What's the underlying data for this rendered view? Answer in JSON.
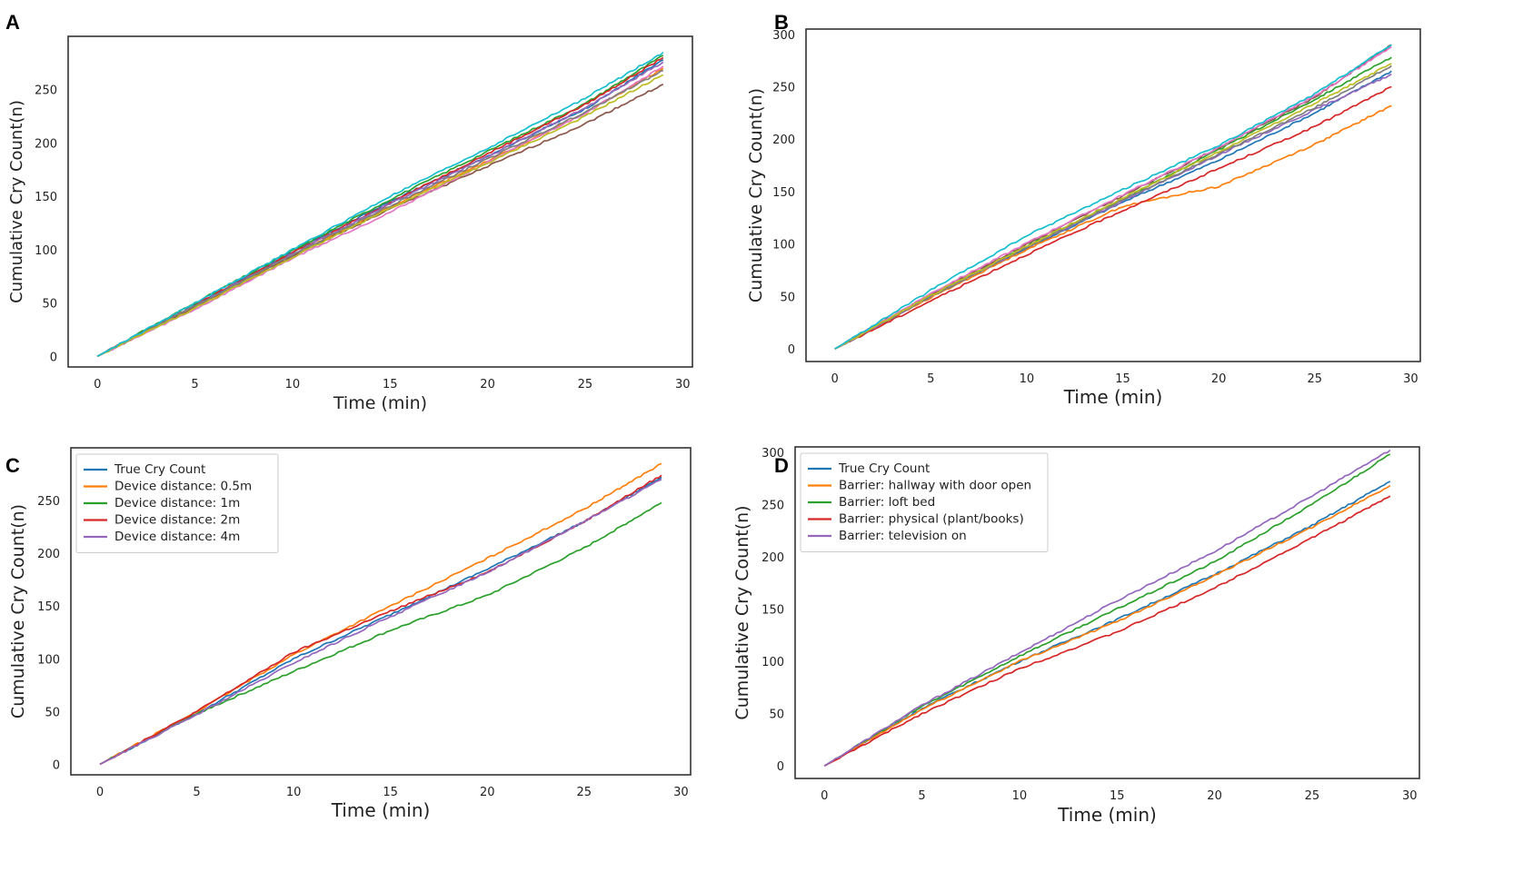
{
  "figure": {
    "panels": [
      "A",
      "B",
      "C",
      "D"
    ]
  },
  "chart_data": [
    {
      "panel": "A",
      "type": "line",
      "xlabel": "Time (min)",
      "ylabel": "Cumulative Cry Count(n)",
      "xlim": [
        -1.5,
        30.5
      ],
      "ylim": [
        -10,
        300
      ],
      "xticks": [
        0,
        5,
        10,
        15,
        20,
        25,
        30
      ],
      "yticks": [
        0,
        50,
        100,
        150,
        200,
        250
      ],
      "legend": null,
      "series": [
        {
          "name": "",
          "color": "#1f77b4",
          "values": [
            [
              0,
              0
            ],
            [
              5,
              48
            ],
            [
              10,
              98
            ],
            [
              15,
              145
            ],
            [
              20,
              188
            ],
            [
              25,
              232
            ],
            [
              29,
              278
            ]
          ]
        },
        {
          "name": "",
          "color": "#ff7f0e",
          "values": [
            [
              0,
              0
            ],
            [
              5,
              46
            ],
            [
              10,
              95
            ],
            [
              15,
              140
            ],
            [
              20,
              183
            ],
            [
              25,
              228
            ],
            [
              29,
              270
            ]
          ]
        },
        {
          "name": "",
          "color": "#2ca02c",
          "values": [
            [
              0,
              0
            ],
            [
              5,
              50
            ],
            [
              10,
              99
            ],
            [
              15,
              147
            ],
            [
              20,
              192
            ],
            [
              25,
              237
            ],
            [
              29,
              282
            ]
          ]
        },
        {
          "name": "",
          "color": "#d62728",
          "values": [
            [
              0,
              0
            ],
            [
              5,
              48
            ],
            [
              10,
              97
            ],
            [
              15,
              144
            ],
            [
              20,
              190
            ],
            [
              25,
              236
            ],
            [
              29,
              280
            ]
          ]
        },
        {
          "name": "",
          "color": "#9467bd",
          "values": [
            [
              0,
              0
            ],
            [
              5,
              47
            ],
            [
              10,
              96
            ],
            [
              15,
              143
            ],
            [
              20,
              187
            ],
            [
              25,
              233
            ],
            [
              29,
              276
            ]
          ]
        },
        {
          "name": "",
          "color": "#8c564b",
          "values": [
            [
              0,
              0
            ],
            [
              5,
              46
            ],
            [
              10,
              94
            ],
            [
              15,
              138
            ],
            [
              20,
              178
            ],
            [
              25,
              218
            ],
            [
              29,
              255
            ]
          ]
        },
        {
          "name": "",
          "color": "#e377c2",
          "values": [
            [
              0,
              0
            ],
            [
              5,
              44
            ],
            [
              10,
              92
            ],
            [
              15,
              135
            ],
            [
              20,
              182
            ],
            [
              25,
              228
            ],
            [
              29,
              272
            ]
          ]
        },
        {
          "name": "",
          "color": "#7f7f7f",
          "values": [
            [
              0,
              0
            ],
            [
              5,
              47
            ],
            [
              10,
              95
            ],
            [
              15,
              141
            ],
            [
              20,
              185
            ],
            [
              25,
              229
            ],
            [
              29,
              268
            ]
          ]
        },
        {
          "name": "",
          "color": "#bcbd22",
          "values": [
            [
              0,
              0
            ],
            [
              5,
              45
            ],
            [
              10,
              93
            ],
            [
              15,
              139
            ],
            [
              20,
              181
            ],
            [
              25,
              225
            ],
            [
              29,
              264
            ]
          ]
        },
        {
          "name": "",
          "color": "#17becf",
          "values": [
            [
              0,
              0
            ],
            [
              5,
              50
            ],
            [
              10,
              100
            ],
            [
              15,
              150
            ],
            [
              20,
              195
            ],
            [
              25,
              242
            ],
            [
              29,
              285
            ]
          ]
        }
      ]
    },
    {
      "panel": "B",
      "type": "line",
      "xlabel": "Time (min)",
      "ylabel": "Cumulative Cry Count(n)",
      "xlim": [
        -1.5,
        30.5
      ],
      "ylim": [
        -12,
        305
      ],
      "xticks": [
        0,
        5,
        10,
        15,
        20,
        25,
        30
      ],
      "yticks": [
        0,
        50,
        100,
        150,
        200,
        250,
        300
      ],
      "legend": null,
      "series": [
        {
          "name": "",
          "color": "#1f77b4",
          "values": [
            [
              0,
              0
            ],
            [
              5,
              50
            ],
            [
              10,
              96
            ],
            [
              15,
              140
            ],
            [
              20,
              180
            ],
            [
              25,
              225
            ],
            [
              29,
              265
            ]
          ]
        },
        {
          "name": "",
          "color": "#ff7f0e",
          "values": [
            [
              0,
              0
            ],
            [
              5,
              49
            ],
            [
              10,
              95
            ],
            [
              15,
              136
            ],
            [
              20,
              155
            ],
            [
              25,
              195
            ],
            [
              29,
              232
            ]
          ]
        },
        {
          "name": "",
          "color": "#2ca02c",
          "values": [
            [
              0,
              0
            ],
            [
              5,
              51
            ],
            [
              10,
              98
            ],
            [
              15,
              143
            ],
            [
              20,
              190
            ],
            [
              25,
              238
            ],
            [
              29,
              278
            ]
          ]
        },
        {
          "name": "",
          "color": "#d62728",
          "values": [
            [
              0,
              0
            ],
            [
              5,
              46
            ],
            [
              10,
              90
            ],
            [
              15,
              132
            ],
            [
              20,
              172
            ],
            [
              25,
              212
            ],
            [
              29,
              250
            ]
          ]
        },
        {
          "name": "",
          "color": "#9467bd",
          "values": [
            [
              0,
              0
            ],
            [
              5,
              50
            ],
            [
              10,
              97
            ],
            [
              15,
              141
            ],
            [
              20,
              185
            ],
            [
              25,
              228
            ],
            [
              29,
              262
            ]
          ]
        },
        {
          "name": "",
          "color": "#8c564b",
          "values": [
            [
              0,
              0
            ],
            [
              5,
              52
            ],
            [
              10,
              100
            ],
            [
              15,
              146
            ],
            [
              20,
              192
            ],
            [
              25,
              240
            ],
            [
              29,
              290
            ]
          ]
        },
        {
          "name": "",
          "color": "#e377c2",
          "values": [
            [
              0,
              0
            ],
            [
              5,
              53
            ],
            [
              10,
              101
            ],
            [
              15,
              147
            ],
            [
              20,
              192
            ],
            [
              25,
              241
            ],
            [
              29,
              288
            ]
          ]
        },
        {
          "name": "",
          "color": "#7f7f7f",
          "values": [
            [
              0,
              0
            ],
            [
              5,
              50
            ],
            [
              10,
              97
            ],
            [
              15,
              142
            ],
            [
              20,
              186
            ],
            [
              25,
              230
            ],
            [
              29,
              270
            ]
          ]
        },
        {
          "name": "",
          "color": "#bcbd22",
          "values": [
            [
              0,
              0
            ],
            [
              5,
              51
            ],
            [
              10,
              98
            ],
            [
              15,
              144
            ],
            [
              20,
              188
            ],
            [
              25,
              234
            ],
            [
              29,
              272
            ]
          ]
        },
        {
          "name": "",
          "color": "#17becf",
          "values": [
            [
              0,
              0
            ],
            [
              5,
              56
            ],
            [
              10,
              108
            ],
            [
              15,
              152
            ],
            [
              20,
              194
            ],
            [
              25,
              243
            ],
            [
              29,
              290
            ]
          ]
        }
      ]
    },
    {
      "panel": "C",
      "type": "line",
      "xlabel": "Time (min)",
      "ylabel": "Cumulative Cry Count(n)",
      "xlim": [
        -1.5,
        30.5
      ],
      "ylim": [
        -10,
        300
      ],
      "xticks": [
        0,
        5,
        10,
        15,
        20,
        25,
        30
      ],
      "yticks": [
        0,
        50,
        100,
        150,
        200,
        250
      ],
      "legend": "top-left",
      "series": [
        {
          "name": "True Cry Count",
          "color": "#1f77b4",
          "values": [
            [
              0,
              0
            ],
            [
              5,
              48
            ],
            [
              10,
              100
            ],
            [
              15,
              142
            ],
            [
              20,
              185
            ],
            [
              25,
              230
            ],
            [
              29,
              272
            ]
          ]
        },
        {
          "name": "Device distance: 0.5m",
          "color": "#ff7f0e",
          "values": [
            [
              0,
              0
            ],
            [
              5,
              50
            ],
            [
              10,
              104
            ],
            [
              15,
              150
            ],
            [
              20,
              195
            ],
            [
              25,
              242
            ],
            [
              29,
              285
            ]
          ]
        },
        {
          "name": "Device distance: 1m",
          "color": "#2ca02c",
          "values": [
            [
              0,
              0
            ],
            [
              5,
              48
            ],
            [
              10,
              88
            ],
            [
              15,
              127
            ],
            [
              20,
              160
            ],
            [
              25,
              205
            ],
            [
              29,
              248
            ]
          ]
        },
        {
          "name": "Device distance: 2m",
          "color": "#d62728",
          "values": [
            [
              0,
              0
            ],
            [
              5,
              50
            ],
            [
              10,
              106
            ],
            [
              15,
              145
            ],
            [
              20,
              182
            ],
            [
              25,
              230
            ],
            [
              29,
              274
            ]
          ]
        },
        {
          "name": "Device distance: 4m",
          "color": "#9467bd",
          "values": [
            [
              0,
              0
            ],
            [
              5,
              47
            ],
            [
              10,
              96
            ],
            [
              15,
              140
            ],
            [
              20,
              182
            ],
            [
              25,
              230
            ],
            [
              29,
              270
            ]
          ]
        }
      ]
    },
    {
      "panel": "D",
      "type": "line",
      "xlabel": "Time (min)",
      "ylabel": "Cumulative Cry Count(n)",
      "xlim": [
        -1.5,
        30.5
      ],
      "ylim": [
        -12,
        305
      ],
      "xticks": [
        0,
        5,
        10,
        15,
        20,
        25,
        30
      ],
      "yticks": [
        0,
        50,
        100,
        150,
        200,
        250,
        300
      ],
      "legend": "top-left",
      "series": [
        {
          "name": "True Cry Count",
          "color": "#1f77b4",
          "values": [
            [
              0,
              0
            ],
            [
              5,
              55
            ],
            [
              10,
              100
            ],
            [
              15,
              140
            ],
            [
              20,
              183
            ],
            [
              25,
              230
            ],
            [
              29,
              272
            ]
          ]
        },
        {
          "name": "Barrier: hallway with door open",
          "color": "#ff7f0e",
          "values": [
            [
              0,
              0
            ],
            [
              5,
              54
            ],
            [
              10,
              100
            ],
            [
              15,
              138
            ],
            [
              20,
              182
            ],
            [
              25,
              228
            ],
            [
              29,
              268
            ]
          ]
        },
        {
          "name": "Barrier: loft bed",
          "color": "#2ca02c",
          "values": [
            [
              0,
              0
            ],
            [
              5,
              57
            ],
            [
              10,
              105
            ],
            [
              15,
              150
            ],
            [
              20,
              195
            ],
            [
              25,
              250
            ],
            [
              29,
              298
            ]
          ]
        },
        {
          "name": "Barrier: physical (plant/books)",
          "color": "#d62728",
          "values": [
            [
              0,
              0
            ],
            [
              5,
              50
            ],
            [
              10,
              93
            ],
            [
              15,
              128
            ],
            [
              20,
              170
            ],
            [
              25,
              218
            ],
            [
              29,
              258
            ]
          ]
        },
        {
          "name": "Barrier: television on",
          "color": "#9467bd",
          "values": [
            [
              0,
              0
            ],
            [
              5,
              58
            ],
            [
              10,
              108
            ],
            [
              15,
              158
            ],
            [
              20,
              205
            ],
            [
              25,
              258
            ],
            [
              29,
              302
            ]
          ]
        }
      ]
    }
  ]
}
